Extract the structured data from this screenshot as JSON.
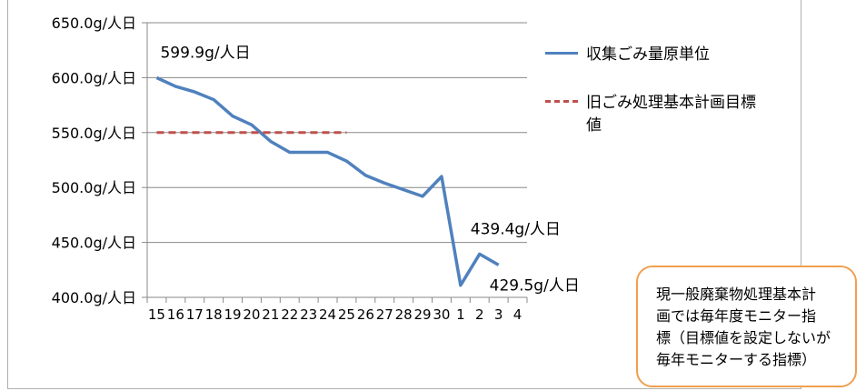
{
  "chart_data": {
    "type": "line",
    "title": "",
    "xlabel": "",
    "ylabel": "",
    "ylim": [
      400,
      650
    ],
    "y_ticks": [
      "650.0g/人日",
      "600.0g/人日",
      "550.0g/人日",
      "500.0g/人日",
      "450.0g/人日",
      "400.0g/人日"
    ],
    "y_tick_values": [
      650,
      600,
      550,
      500,
      450,
      400
    ],
    "categories": [
      "15",
      "16",
      "17",
      "18",
      "19",
      "20",
      "21",
      "22",
      "23",
      "24",
      "25",
      "26",
      "27",
      "28",
      "29",
      "30",
      "1",
      "2",
      "3",
      "4"
    ],
    "grid": true,
    "legend_position": "right",
    "series": [
      {
        "name": "収集ごみ量原単位",
        "color": "#4f81bd",
        "style": "solid",
        "values": [
          599.9,
          592,
          587,
          580,
          565,
          557,
          542,
          532,
          532,
          532,
          524,
          511,
          504,
          498,
          492,
          510,
          411,
          439.4,
          429.5,
          null
        ]
      },
      {
        "name": "旧ごみ処理基本計画目標値",
        "color": "#c0504d",
        "style": "dashed",
        "values": [
          550,
          550,
          550,
          550,
          550,
          550,
          550,
          550,
          550,
          550,
          550,
          null,
          null,
          null,
          null,
          null,
          null,
          null,
          null,
          null
        ]
      }
    ],
    "annotations": [
      {
        "text": "599.9g/人日",
        "index": 0
      },
      {
        "text": "439.4g/人日",
        "index": 17
      },
      {
        "text": "429.5g/人日",
        "index": 18
      }
    ]
  },
  "legend": {
    "item1": "収集ごみ量原単位",
    "item2_line1": "旧ごみ処理基本計画目標",
    "item2_line2": "値"
  },
  "note": "現一般廃棄物処理基本計\n画では毎年度モニター指\n標（目標値を設定しないが\n毎年モニターする指標）"
}
